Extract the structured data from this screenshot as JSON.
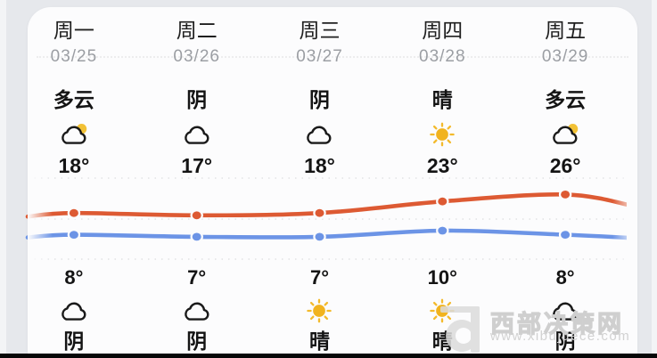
{
  "colors": {
    "high_line": "#dd5a33",
    "low_line": "#6c94e6",
    "sun": "#f1b31e",
    "card_bg": "#fcfcfd",
    "page_bg": "#e6e8ec"
  },
  "forecast": {
    "days": [
      {
        "weekday": "周一",
        "date": "03/25",
        "day_condition": "多云",
        "day_icon": "partly-cloudy-icon",
        "high": "18°",
        "low": "8°",
        "night_icon": "cloud-icon",
        "night_condition": "阴"
      },
      {
        "weekday": "周二",
        "date": "03/26",
        "day_condition": "阴",
        "day_icon": "cloud-icon",
        "high": "17°",
        "low": "7°",
        "night_icon": "cloud-icon",
        "night_condition": "阴"
      },
      {
        "weekday": "周三",
        "date": "03/27",
        "day_condition": "阴",
        "day_icon": "cloud-icon",
        "high": "18°",
        "low": "7°",
        "night_icon": "sun-icon",
        "night_condition": "晴"
      },
      {
        "weekday": "周四",
        "date": "03/28",
        "day_condition": "晴",
        "day_icon": "sun-icon",
        "high": "23°",
        "low": "10°",
        "night_icon": "sun-icon",
        "night_condition": "晴"
      },
      {
        "weekday": "周五",
        "date": "03/29",
        "day_condition": "多云",
        "day_icon": "partly-cloudy-icon",
        "high": "26°",
        "low": "8°",
        "night_icon": "cloud-icon",
        "night_condition": "阴"
      }
    ]
  },
  "chart_data": {
    "type": "line",
    "categories": [
      "周一",
      "周二",
      "周三",
      "周四",
      "周五"
    ],
    "series": [
      {
        "name": "day-high-temp",
        "values": [
          18,
          17,
          18,
          23,
          26
        ],
        "color": "#dd5a33"
      },
      {
        "name": "night-low-temp",
        "values": [
          8,
          7,
          7,
          10,
          8
        ],
        "color": "#6c94e6"
      }
    ],
    "unit": "°C",
    "grid": "faint-dotted-horizontal",
    "legend": "none",
    "notes": "lines fade out at left and right card edges; dot markers at each day"
  },
  "watermark": {
    "logo": "d-logo",
    "site_name": "西部决策网",
    "site_url": "www.xibujuece.com"
  }
}
